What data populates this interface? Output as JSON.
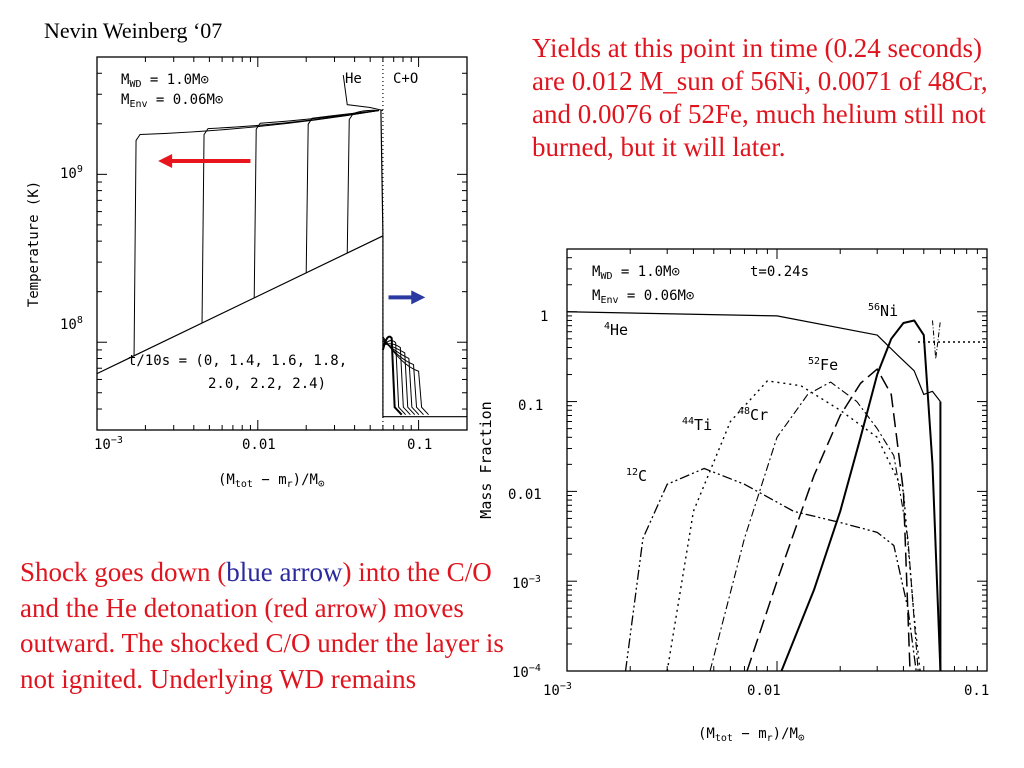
{
  "author": "Nevin Weinberg ‘07",
  "yields_text": "Yields at this point in time (0.24 seconds) are 0.012 M_sun of 56Ni, 0.0071 of 48Cr, and 0.0076 of 52Fe, much helium still not burned, but it will later.",
  "shock_text": {
    "part1": "Shock goes down (",
    "blue": "blue",
    "space": " ",
    "arrow": "arrow",
    "part2": ") into the C/O and the He  detonation (red arrow) moves outward. The shocked C/O under the layer is not ignited. Underlying WD remains"
  },
  "colors": {
    "red_text": "#e0141e",
    "blue_text": "#2a2a9e",
    "red_arrow": "#e8141e",
    "blue_arrow": "#2a3aa0"
  },
  "chart_data": [
    {
      "type": "line",
      "xscale": "log",
      "yscale": "log",
      "xlim": [
        0.001,
        0.2
      ],
      "ylim": [
        30000000,
        5000000000
      ],
      "ylabel": "Temperature (K)",
      "xlabel_main": "(M",
      "xlabel_sub1": "tot",
      "xlabel_mid": " − m",
      "xlabel_sub2": "r",
      "xlabel_end": ")/M",
      "xlabel_sym": "⊙",
      "xticks": [
        "10−3",
        "0.01",
        "0.1"
      ],
      "yticks": [
        "109",
        "108"
      ],
      "annot_mwd": "M",
      "annot_mwd_sub": "WD",
      "annot_mwd_val": " = 1.0M⊙",
      "annot_menv": "M",
      "annot_menv_sub": "Env",
      "annot_menv_val": " = 0.06M⊙",
      "region_he": "He",
      "region_co": "C+O",
      "times_line1": "t/10s = (0, 1.4, 1.6, 1.8,",
      "times_line2": "2.0, 2.2, 2.4)",
      "boundary_x": 0.06,
      "envelope_base": [
        [
          0.001,
          65000000
        ],
        [
          0.06,
          430000000
        ]
      ],
      "detonation_fronts_x": [
        0.0017,
        0.0045,
        0.0095,
        0.02,
        0.036
      ],
      "plateau_T": 2400000000,
      "arrows": [
        {
          "color": "red",
          "direction": "left",
          "x_from": 0.009,
          "x_to": 0.0024,
          "T": 1200000000
        },
        {
          "color": "blue",
          "direction": "right",
          "x_from": 0.065,
          "x_to": 0.11,
          "T": 185000000
        }
      ]
    },
    {
      "type": "line",
      "xscale": "log",
      "yscale": "log",
      "xlim": [
        0.001,
        0.1
      ],
      "ylim": [
        0.0001,
        5
      ],
      "ylabel": "Mass Fraction",
      "xlabel_main": "(M",
      "xlabel_sub1": "tot",
      "xlabel_mid": " − m",
      "xlabel_sub2": "r",
      "xlabel_end": ")/M",
      "xlabel_sym": "⊙",
      "xticks": [
        "10−3",
        "0.01",
        "0.1"
      ],
      "yticks": [
        "1",
        "0.1",
        "0.01",
        "10−3",
        "10−4"
      ],
      "annot_mwd": "M",
      "annot_mwd_sub": "WD",
      "annot_mwd_val": " = 1.0M⊙",
      "annot_time": "t=0.24s",
      "annot_menv": "M",
      "annot_menv_sub": "Env",
      "annot_menv_val": " = 0.06M⊙",
      "series": [
        {
          "name": "4He",
          "label_sup": "4",
          "label": "He",
          "dash": "",
          "width": 1.2,
          "points": [
            [
              0.001,
              1.0
            ],
            [
              0.01,
              0.9
            ],
            [
              0.03,
              0.55
            ],
            [
              0.038,
              0.32
            ],
            [
              0.045,
              0.22
            ],
            [
              0.05,
              0.12
            ],
            [
              0.055,
              0.13
            ],
            [
              0.06,
              0.1
            ]
          ]
        },
        {
          "name": "56Ni",
          "label_sup": "56",
          "label": "Ni",
          "dash": "",
          "width": 2,
          "points": [
            [
              0.0105,
              0.0001
            ],
            [
              0.015,
              0.0008
            ],
            [
              0.02,
              0.006
            ],
            [
              0.025,
              0.04
            ],
            [
              0.03,
              0.2
            ],
            [
              0.035,
              0.5
            ],
            [
              0.04,
              0.75
            ],
            [
              0.045,
              0.8
            ],
            [
              0.05,
              0.55
            ],
            [
              0.055,
              0.02
            ],
            [
              0.06,
              0.0001
            ]
          ]
        },
        {
          "name": "52Fe",
          "label_sup": "52",
          "label": "Fe",
          "dash": "14,6",
          "width": 1.5,
          "points": [
            [
              0.0072,
              0.0001
            ],
            [
              0.01,
              0.001
            ],
            [
              0.015,
              0.015
            ],
            [
              0.02,
              0.07
            ],
            [
              0.025,
              0.16
            ],
            [
              0.03,
              0.23
            ],
            [
              0.035,
              0.12
            ],
            [
              0.04,
              0.01
            ],
            [
              0.043,
              0.0001
            ]
          ]
        },
        {
          "name": "48Cr",
          "label_sup": "48",
          "label": "Cr",
          "dash": "8,3,2,3",
          "width": 1.1,
          "points": [
            [
              0.0048,
              0.0001
            ],
            [
              0.007,
              0.003
            ],
            [
              0.01,
              0.04
            ],
            [
              0.014,
              0.12
            ],
            [
              0.018,
              0.165
            ],
            [
              0.024,
              0.1
            ],
            [
              0.03,
              0.05
            ],
            [
              0.036,
              0.025
            ],
            [
              0.042,
              0.003
            ],
            [
              0.047,
              0.0001
            ]
          ]
        },
        {
          "name": "44Ti",
          "label_sup": "44",
          "label": "Ti",
          "dash": "2,4",
          "width": 1.4,
          "points": [
            [
              0.003,
              0.0001
            ],
            [
              0.004,
              0.006
            ],
            [
              0.006,
              0.06
            ],
            [
              0.009,
              0.17
            ],
            [
              0.013,
              0.15
            ],
            [
              0.02,
              0.08
            ],
            [
              0.03,
              0.04
            ],
            [
              0.04,
              0.01
            ],
            [
              0.045,
              0.0004
            ],
            [
              0.048,
              0.0001
            ]
          ]
        },
        {
          "name": "12C",
          "label_sup": "12",
          "label": "C",
          "dash": "10,3,2,3,2,3",
          "width": 1.3,
          "points": [
            [
              0.0019,
              0.0001
            ],
            [
              0.0023,
              0.003
            ],
            [
              0.003,
              0.012
            ],
            [
              0.0045,
              0.018
            ],
            [
              0.007,
              0.012
            ],
            [
              0.012,
              0.006
            ],
            [
              0.02,
              0.0045
            ],
            [
              0.03,
              0.0035
            ],
            [
              0.036,
              0.0025
            ],
            [
              0.042,
              0.0005
            ],
            [
              0.046,
              0.0001
            ]
          ]
        }
      ]
    }
  ]
}
